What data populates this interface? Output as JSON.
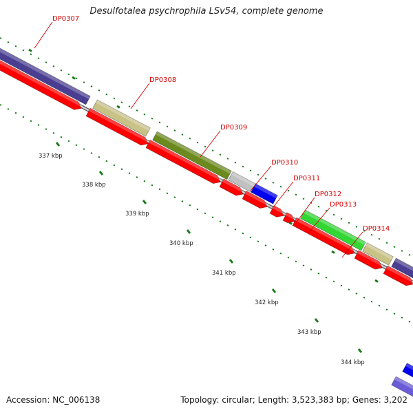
{
  "title": "Desulfotalea psychrophila LSv54, complete genome",
  "footer": {
    "accession": "Accession: NC_006138",
    "summary": "Topology: circular; Length: 3,523,383 bp; Genes: 3,202"
  },
  "colors": {
    "cds": "#ff0000",
    "backbone": "#8c8c8c",
    "tick": "#1a7a1a",
    "label": "#d40000"
  },
  "tick_labels": [
    "337 kbp",
    "338 kbp",
    "339 kbp",
    "340 kbp",
    "341 kbp",
    "342 kbp",
    "343 kbp",
    "344 kbp"
  ],
  "genes": [
    {
      "label": "DP0307",
      "color": "#4a3e92"
    },
    {
      "label": "DP0308",
      "color": "#c8c287"
    },
    {
      "label": "DP0309",
      "color": "#6b8a1e"
    },
    {
      "label": "DP0310",
      "color": "#c0c0c0"
    },
    {
      "label": "DP0311",
      "color": "#0000ee"
    },
    {
      "label": "DP0312",
      "color": "#ff0000"
    },
    {
      "label": "DP0313",
      "color": "#ff0000"
    },
    {
      "label": "DP0314",
      "color": "#33d633"
    }
  ]
}
